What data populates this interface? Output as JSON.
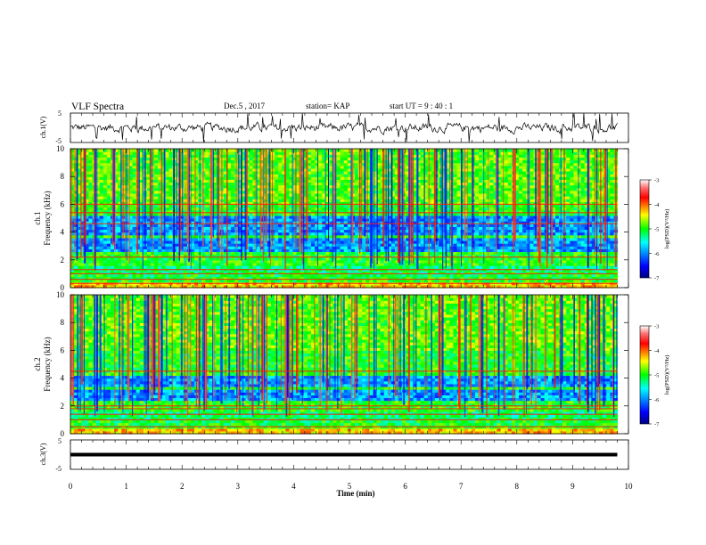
{
  "header": {
    "title": "VLF Spectra",
    "date": "Dec.5 , 2017",
    "station": "station= KAP",
    "start_ut": "start UT =  9 : 40 : 1"
  },
  "chart_data": [
    {
      "type": "line",
      "id": "ch1-voltage",
      "ylabel": "ch.1(V)",
      "ylim": [
        -5,
        5
      ],
      "yticks": [
        "5",
        "-5"
      ],
      "xlim": [
        0,
        10
      ],
      "series": [
        {
          "color": "#000000",
          "x_range": [
            0,
            9.8
          ],
          "mean": 0,
          "amplitude": 1.6,
          "description_values": "noisy trace fluctuating roughly between -2 V and +2 V"
        }
      ]
    },
    {
      "type": "heatmap",
      "id": "ch1-spectrogram",
      "ylabel_line1": "ch.1",
      "ylabel_line2": "Frequency (kHz)",
      "ylim": [
        0,
        10
      ],
      "yticks": [
        "0",
        "2",
        "4",
        "6",
        "8",
        "10"
      ],
      "xlim": [
        0,
        9.8
      ],
      "colorbar": {
        "label": "log(PSD)(V²/Hz)",
        "ticks": [
          "-3",
          "-4",
          "-5",
          "-6",
          "-7"
        ],
        "range": [
          -7,
          -3
        ]
      },
      "low_power_bands_khz": [
        [
          2.6,
          3.6
        ],
        [
          3.9,
          5.1
        ]
      ],
      "horizontal_lines_khz": [
        0.3,
        0.6,
        1.0,
        1.3,
        2.2,
        4.6,
        5.4,
        6.0
      ]
    },
    {
      "type": "heatmap",
      "id": "ch2-spectrogram",
      "ylabel_line1": "ch.2",
      "ylabel_line2": "Frequency (kHz)",
      "ylim": [
        0,
        10
      ],
      "yticks": [
        "0",
        "2",
        "4",
        "6",
        "8",
        "10"
      ],
      "xlim": [
        0,
        9.8
      ],
      "colorbar": {
        "label": "log(PSD)(V²/Hz)",
        "ticks": [
          "-3",
          "-4",
          "-5",
          "-6",
          "-7"
        ],
        "range": [
          -7,
          -3
        ]
      },
      "low_power_bands_khz": [
        [
          2.5,
          3.2
        ],
        [
          3.4,
          4.2
        ]
      ],
      "horizontal_lines_khz": [
        0.5,
        1.0,
        1.4,
        1.8,
        2.0,
        4.5
      ]
    },
    {
      "type": "line",
      "id": "ch3-voltage",
      "ylabel": "ch.3(V)",
      "ylim": [
        -5,
        5
      ],
      "yticks": [
        "5",
        "-5"
      ],
      "xlim": [
        0,
        10
      ],
      "series": [
        {
          "color": "#000000",
          "x_range": [
            0,
            9.8
          ],
          "constant": 0
        }
      ]
    }
  ],
  "x_axis": {
    "label": "Time (min)",
    "ticks": [
      "0",
      "1",
      "2",
      "3",
      "4",
      "5",
      "6",
      "7",
      "8",
      "9",
      "10"
    ]
  }
}
